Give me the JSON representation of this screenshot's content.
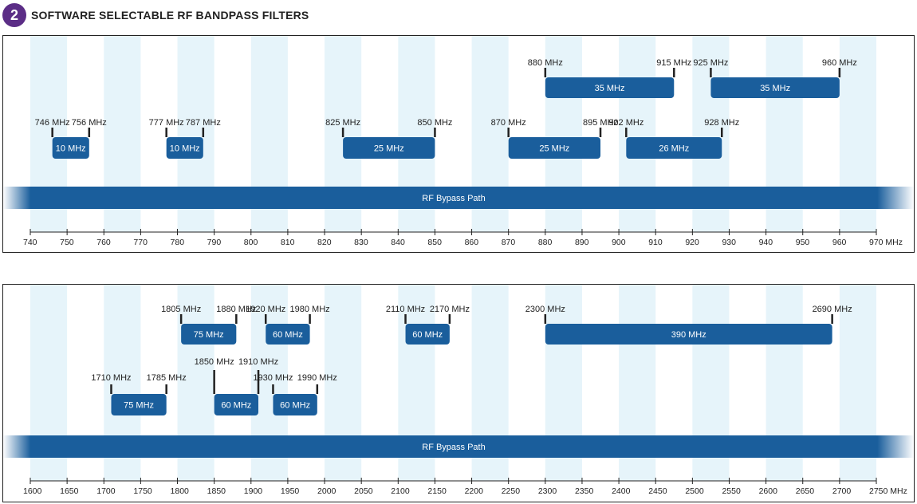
{
  "header": {
    "badge": "2",
    "title": "SOFTWARE SELECTABLE RF BANDPASS FILTERS"
  },
  "colors": {
    "band_fill": "#1a5e9c",
    "stripe": "#e6f4fa",
    "badge": "#5b2d86"
  },
  "chart_data": [
    {
      "type": "diagram",
      "axis": {
        "min": 740,
        "max": 970,
        "step": 10,
        "tick_labels": [
          "740",
          "750",
          "760",
          "770",
          "780",
          "790",
          "800",
          "810",
          "820",
          "830",
          "840",
          "850",
          "860",
          "870",
          "880",
          "890",
          "900",
          "910",
          "920",
          "930",
          "940",
          "950",
          "960",
          "970 MHz"
        ]
      },
      "bypass_label": "RF Bypass Path",
      "filters": [
        {
          "row": 0,
          "start": 880,
          "end": 915,
          "start_label": "880 MHz",
          "end_label": "915 MHz",
          "bandwidth": "35 MHz"
        },
        {
          "row": 0,
          "start": 925,
          "end": 960,
          "start_label": "925 MHz",
          "end_label": "960  MHz",
          "bandwidth": "35 MHz"
        },
        {
          "row": 1,
          "start": 746,
          "end": 756,
          "start_label": "746 MHz",
          "end_label": "756 MHz",
          "bandwidth": "10 MHz"
        },
        {
          "row": 1,
          "start": 777,
          "end": 787,
          "start_label": "777 MHz",
          "end_label": "787 MHz",
          "bandwidth": "10 MHz"
        },
        {
          "row": 1,
          "start": 825,
          "end": 850,
          "start_label": "825 MHz",
          "end_label": "850 MHz",
          "bandwidth": "25 MHz"
        },
        {
          "row": 1,
          "start": 870,
          "end": 895,
          "start_label": "870 MHz",
          "end_label": "895 MHz",
          "bandwidth": "25 MHz"
        },
        {
          "row": 1,
          "start": 902,
          "end": 928,
          "start_label": "902 MHz",
          "end_label": "928 MHz",
          "bandwidth": "26 MHz"
        }
      ]
    },
    {
      "type": "diagram",
      "axis": {
        "min": 1600,
        "max": 2750,
        "step": 50,
        "tick_labels": [
          "1600",
          "1650",
          "1700",
          "1750",
          "1800",
          "1850",
          "1900",
          "1950",
          "2000",
          "2050",
          "2100",
          "2150",
          "2200",
          "2250",
          "2300",
          "2350",
          "2400",
          "2450",
          "2500",
          "2550",
          "2600",
          "2650",
          "2700",
          "2750 MHz"
        ]
      },
      "bypass_label": "RF Bypass Path",
      "filters": [
        {
          "row": 0,
          "start": 1805,
          "end": 1880,
          "start_label": "1805 MHz",
          "end_label": "1880 MHz",
          "bandwidth": "75 MHz"
        },
        {
          "row": 0,
          "start": 1920,
          "end": 1980,
          "start_label": "1920 MHz",
          "end_label": "1980 MHz",
          "bandwidth": "60 MHz"
        },
        {
          "row": 0,
          "start": 2110,
          "end": 2170,
          "start_label": "2110 MHz",
          "end_label": "2170 MHz",
          "bandwidth": "60 MHz"
        },
        {
          "row": 0,
          "start": 2300,
          "end": 2690,
          "start_label": "2300 MHz",
          "end_label": "2690 MHz",
          "bandwidth": "390 MHz"
        },
        {
          "row": 1,
          "start": 1850,
          "end": 1910,
          "start_label": "1850 MHz",
          "end_label": "1910 MHz",
          "bandwidth": "60 MHz"
        },
        {
          "row": 2,
          "start": 1710,
          "end": 1785,
          "start_label": "1710 MHz",
          "end_label": "1785 MHz",
          "bandwidth": "75 MHz"
        },
        {
          "row": 2,
          "start": 1930,
          "end": 1990,
          "start_label": "1930 MHz",
          "end_label": "1990 MHz",
          "bandwidth": "60 MHz"
        }
      ]
    }
  ]
}
